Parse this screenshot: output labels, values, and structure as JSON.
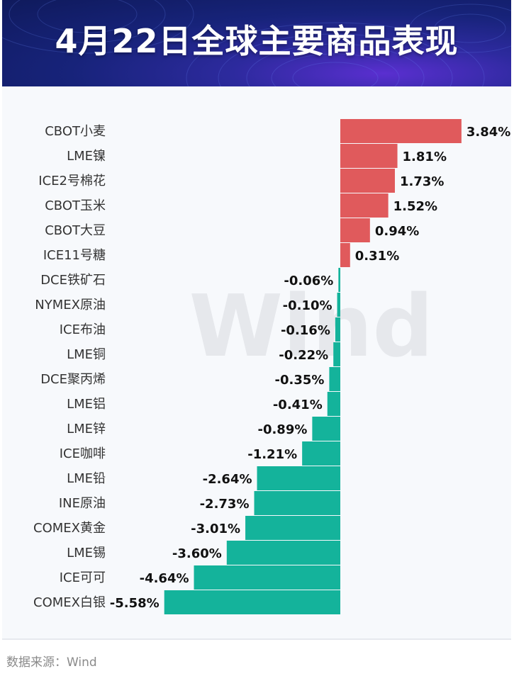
{
  "header": {
    "title": "4月22日全球主要商品表现"
  },
  "watermark": "Wind",
  "source": "数据来源：Wind",
  "colors": {
    "positive": "#e05a5c",
    "negative": "#14b39b",
    "header_dark": "#0f1a5c",
    "header_glow": "#5a2fd0"
  },
  "chart_data": {
    "type": "bar",
    "orientation": "horizontal",
    "categories": [
      "CBOT小麦",
      "LME镍",
      "ICE2号棉花",
      "CBOT玉米",
      "CBOT大豆",
      "ICE11号糖",
      "DCE铁矿石",
      "NYMEX原油",
      "ICE布油",
      "LME铜",
      "DCE聚丙烯",
      "LME铝",
      "LME锌",
      "ICE咖啡",
      "LME铅",
      "INE原油",
      "COMEX黄金",
      "LME锡",
      "ICE可可",
      "COMEX白银"
    ],
    "values": [
      3.84,
      1.81,
      1.73,
      1.52,
      0.94,
      0.31,
      -0.06,
      -0.1,
      -0.16,
      -0.22,
      -0.35,
      -0.41,
      -0.89,
      -1.21,
      -2.64,
      -2.73,
      -3.01,
      -3.6,
      -4.64,
      -5.58
    ],
    "labels": [
      "3.84%",
      "1.81%",
      "1.73%",
      "1.52%",
      "0.94%",
      "0.31%",
      "-0.06%",
      "-0.10%",
      "-0.16%",
      "-0.22%",
      "-0.35%",
      "-0.41%",
      "-0.89%",
      "-1.21%",
      "-2.64%",
      "-2.73%",
      "-3.01%",
      "-3.60%",
      "-4.64%",
      "-5.58%"
    ],
    "unit": "%",
    "xlim": [
      -5.58,
      3.84
    ],
    "grid": false,
    "legend": "none"
  }
}
